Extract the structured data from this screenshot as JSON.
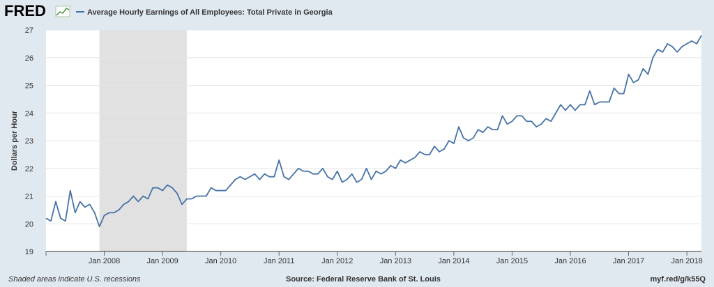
{
  "header": {
    "logo_text": "FRED",
    "series_title": "Average Hourly Earnings of All Employees: Total Private in Georgia"
  },
  "colors": {
    "background": "#e1e9f0",
    "plot_background": "#ffffff",
    "line": "#4572a7",
    "recession": "#e1e1e1",
    "logo_text": "#000000",
    "logo_accent": "#4e8f3b"
  },
  "footer": {
    "note": "Shaded areas indicate U.S. recessions",
    "source": "Source: Federal Reserve Bank of St. Louis",
    "url": "myf.red/g/k55Q"
  },
  "chart_data": {
    "type": "line",
    "title": "Average Hourly Earnings of All Employees: Total Private in Georgia",
    "ylabel": "Dollars per Hour",
    "xlabel": "",
    "ylim": [
      19,
      27
    ],
    "xlim": [
      "2007-01",
      "2018-04"
    ],
    "yticks": [
      19,
      20,
      21,
      22,
      23,
      24,
      25,
      26,
      27
    ],
    "xticks": [
      "Jan 2008",
      "Jan 2009",
      "Jan 2010",
      "Jan 2011",
      "Jan 2012",
      "Jan 2013",
      "Jan 2014",
      "Jan 2015",
      "Jan 2016",
      "Jan 2017",
      "Jan 2018"
    ],
    "grid": true,
    "recessions": [
      {
        "start": "2007-12",
        "end": "2009-06"
      }
    ],
    "series": [
      {
        "start": "2007-01",
        "frequency": "monthly",
        "values": [
          20.2,
          20.1,
          20.8,
          20.2,
          20.1,
          21.2,
          20.4,
          20.8,
          20.6,
          20.7,
          20.4,
          19.9,
          20.3,
          20.4,
          20.4,
          20.5,
          20.7,
          20.8,
          21.0,
          20.8,
          21.0,
          20.9,
          21.3,
          21.3,
          21.2,
          21.4,
          21.3,
          21.1,
          20.7,
          20.9,
          20.9,
          21.0,
          21.0,
          21.0,
          21.3,
          21.2,
          21.2,
          21.2,
          21.4,
          21.6,
          21.7,
          21.6,
          21.7,
          21.8,
          21.6,
          21.8,
          21.7,
          21.7,
          22.3,
          21.7,
          21.6,
          21.8,
          22.0,
          21.9,
          21.9,
          21.8,
          21.8,
          22.0,
          21.7,
          21.6,
          21.9,
          21.5,
          21.6,
          21.8,
          21.5,
          21.6,
          22.0,
          21.6,
          21.9,
          21.8,
          21.9,
          22.1,
          22.0,
          22.3,
          22.2,
          22.3,
          22.4,
          22.6,
          22.5,
          22.5,
          22.8,
          22.6,
          22.7,
          23.0,
          22.9,
          23.5,
          23.1,
          23.0,
          23.1,
          23.4,
          23.3,
          23.5,
          23.4,
          23.4,
          23.9,
          23.6,
          23.7,
          23.9,
          23.9,
          23.7,
          23.7,
          23.5,
          23.6,
          23.8,
          23.7,
          24.0,
          24.3,
          24.1,
          24.3,
          24.1,
          24.3,
          24.3,
          24.8,
          24.3,
          24.4,
          24.4,
          24.4,
          24.9,
          24.7,
          24.7,
          25.4,
          25.1,
          25.2,
          25.6,
          25.4,
          26.0,
          26.3,
          26.2,
          26.5,
          26.4,
          26.2,
          26.4,
          26.5,
          26.6,
          26.5,
          26.8
        ]
      }
    ]
  }
}
